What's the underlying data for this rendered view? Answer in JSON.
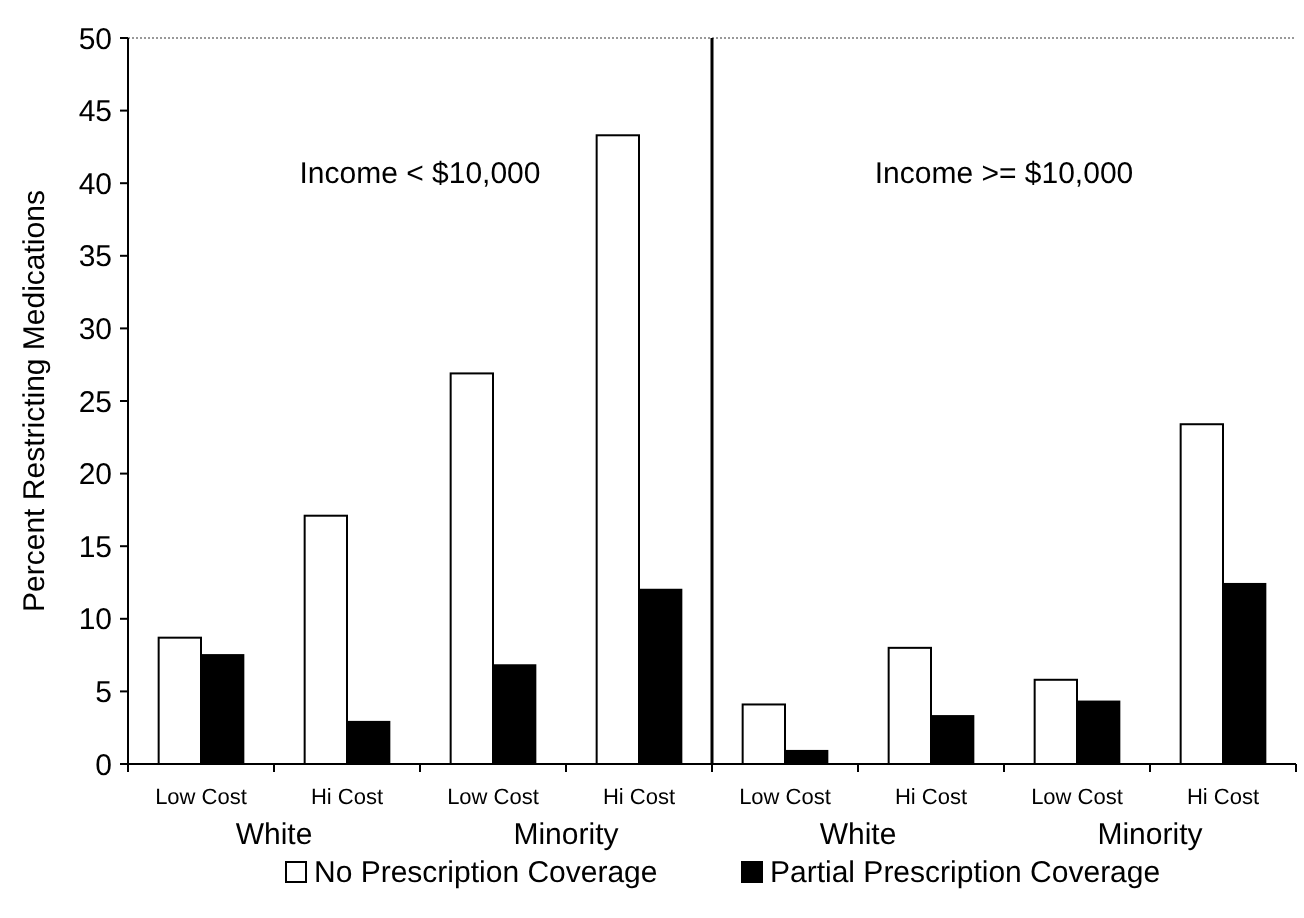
{
  "chart_data": {
    "type": "bar",
    "ylabel": "Percent Restricting Medications",
    "categories": [
      "Low Cost",
      "Hi Cost",
      "Low Cost",
      "Hi Cost",
      "Low Cost",
      "Hi Cost",
      "Low Cost",
      "Hi Cost"
    ],
    "series": [
      {
        "name": "No Prescription Coverage",
        "color": "#ffffff",
        "values": [
          8.7,
          17.1,
          26.9,
          43.3,
          4.1,
          8.0,
          5.8,
          23.4
        ]
      },
      {
        "name": "Partial Prescription Coverage",
        "color": "#000000",
        "values": [
          7.5,
          2.9,
          6.8,
          12.0,
          0.9,
          3.3,
          4.3,
          12.4
        ]
      }
    ],
    "ylim": [
      0,
      50
    ],
    "yticks": [
      0,
      5,
      10,
      15,
      20,
      25,
      30,
      35,
      40,
      45,
      50
    ],
    "grid": false,
    "legend": "bottom",
    "annotations": [
      "Income < $10,000",
      "Income >= $10,000",
      "White",
      "Minority",
      "White",
      "Minority"
    ]
  }
}
